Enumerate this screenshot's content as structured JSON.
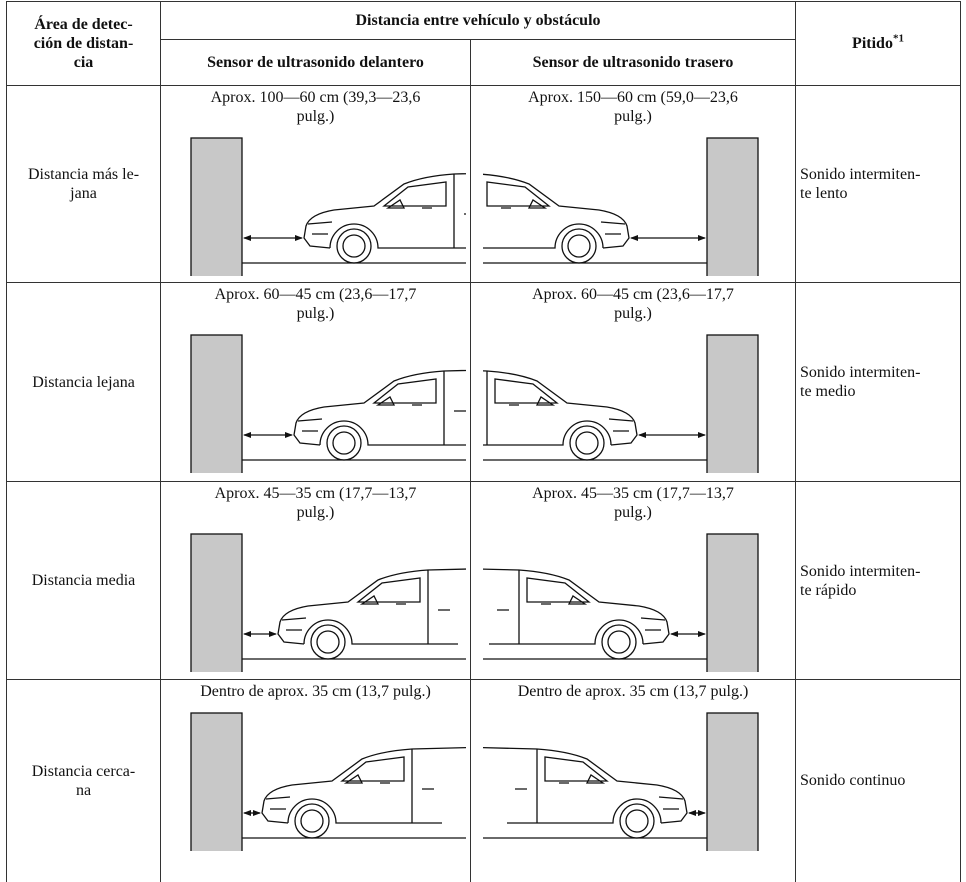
{
  "table": {
    "header": {
      "area": "Área de detec-\nción de distan-\ncia",
      "distance": "Distancia entre vehículo y obstáculo",
      "front": "Sensor de ultrasonido delantero",
      "rear": "Sensor de ultrasonido trasero",
      "beep": "Pitido",
      "beep_note": "*1"
    },
    "rows": [
      {
        "area": "Distancia más le-\njana",
        "front": "Aprox. 100—60 cm (39,3—23,6\npulg.)",
        "rear": "Aprox. 150—60 cm (59,0—23,6\npulg.)",
        "beep": "Sonido intermiten-\nte lento"
      },
      {
        "area": "Distancia lejana",
        "front": "Aprox. 60—45 cm (23,6—17,7\npulg.)",
        "rear": "Aprox. 60—45 cm (23,6—17,7\npulg.)",
        "beep": "Sonido intermiten-\nte medio"
      },
      {
        "area": "Distancia media",
        "front": "Aprox. 45—35 cm (17,7—13,7\npulg.)",
        "rear": "Aprox. 45—35 cm (17,7—13,7\npulg.)",
        "beep": "Sonido intermiten-\nte rápido"
      },
      {
        "area": "Distancia cerca-\nna",
        "front": "Dentro de aprox. 35 cm (13,7 pulg.)",
        "rear": "Dentro de aprox. 35 cm (13,7 pulg.)",
        "beep": "Sonido continuo"
      }
    ]
  }
}
